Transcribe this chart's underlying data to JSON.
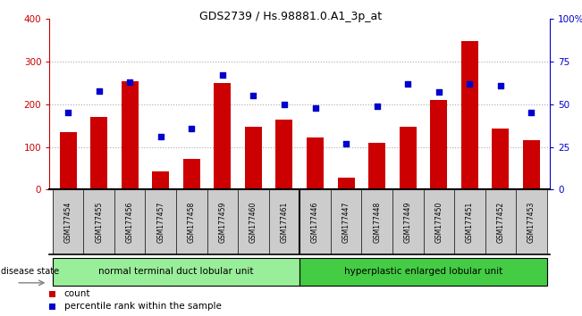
{
  "title": "GDS2739 / Hs.98881.0.A1_3p_at",
  "categories": [
    "GSM177454",
    "GSM177455",
    "GSM177456",
    "GSM177457",
    "GSM177458",
    "GSM177459",
    "GSM177460",
    "GSM177461",
    "GSM177446",
    "GSM177447",
    "GSM177448",
    "GSM177449",
    "GSM177450",
    "GSM177451",
    "GSM177452",
    "GSM177453"
  ],
  "counts": [
    135,
    170,
    255,
    43,
    72,
    250,
    148,
    165,
    122,
    27,
    110,
    148,
    210,
    348,
    143,
    116
  ],
  "percentiles": [
    45,
    58,
    63,
    31,
    36,
    67,
    55,
    50,
    48,
    27,
    49,
    62,
    57,
    62,
    61,
    45
  ],
  "group1_label": "normal terminal duct lobular unit",
  "group2_label": "hyperplastic enlarged lobular unit",
  "group1_count": 8,
  "group2_count": 8,
  "bar_color": "#cc0000",
  "scatter_color": "#0000cc",
  "ylim_left": [
    0,
    400
  ],
  "ylim_right": [
    0,
    100
  ],
  "yticks_left": [
    0,
    100,
    200,
    300,
    400
  ],
  "yticks_right": [
    0,
    25,
    50,
    75,
    100
  ],
  "ytick_labels_right": [
    "0",
    "25",
    "50",
    "75",
    "100%"
  ],
  "grid_color": "#aaaaaa",
  "group1_color": "#99ee99",
  "group2_color": "#44cc44",
  "bg_color": "#cccccc",
  "legend_count_label": "count",
  "legend_pct_label": "percentile rank within the sample"
}
